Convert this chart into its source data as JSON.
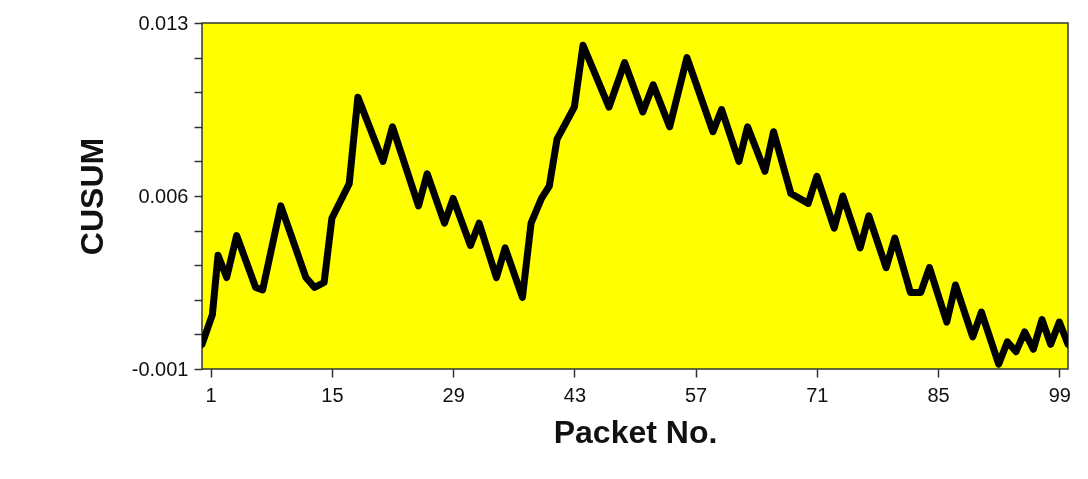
{
  "chart_data": {
    "type": "line",
    "xlabel": "Packet No.",
    "ylabel": "CUSUM",
    "color": "#000000",
    "x": [
      0,
      1.2,
      1.85,
      2.85,
      4,
      6.2,
      7,
      9.1,
      12,
      13,
      14.1,
      15,
      17,
      18,
      20.9,
      22,
      25,
      26,
      28,
      29,
      31,
      32,
      34,
      35,
      37,
      38,
      39.2,
      40.1,
      41,
      43,
      44,
      47,
      48.8,
      50.9,
      52.1,
      54,
      56,
      59,
      60,
      62,
      63,
      65,
      66,
      68,
      70,
      71,
      73,
      74,
      76,
      77,
      79,
      80,
      81.8,
      83,
      84,
      86,
      87,
      89,
      90,
      92,
      93,
      94,
      95,
      96,
      97,
      98,
      99,
      100
    ],
    "values": [
      0.0,
      0.0012,
      0.0036,
      0.0027,
      0.0044,
      0.0023,
      0.0022,
      0.0056,
      0.0027,
      0.0023,
      0.0025,
      0.0051,
      0.0065,
      0.01,
      0.0074,
      0.0088,
      0.0056,
      0.0069,
      0.0049,
      0.0059,
      0.004,
      0.0049,
      0.0027,
      0.0039,
      0.0019,
      0.0049,
      0.0059,
      0.0064,
      0.0083,
      0.0096,
      0.0121,
      0.0096,
      0.0114,
      0.0094,
      0.0105,
      0.0088,
      0.0116,
      0.0086,
      0.0095,
      0.0074,
      0.0088,
      0.007,
      0.0086,
      0.0061,
      0.0057,
      0.0068,
      0.0047,
      0.006,
      0.0039,
      0.0052,
      0.0031,
      0.0043,
      0.0021,
      0.0021,
      0.0031,
      0.0009,
      0.0024,
      0.0003,
      0.0013,
      -0.0008,
      0.0001,
      -0.0003,
      0.0005,
      -0.0002,
      0.001,
      0.0,
      0.0009,
      0.0
    ],
    "xlim": [
      0,
      100
    ],
    "xticks": [
      1,
      15,
      29,
      43,
      57,
      71,
      85,
      99
    ],
    "ylim": [
      -0.001,
      0.013
    ],
    "yticks": [
      -0.001,
      {
        "value": 0.0004,
        "label": null
      },
      {
        "value": 0.0018,
        "label": null
      },
      {
        "value": 0.0032,
        "label": null
      },
      {
        "value": 0.0046,
        "label": null
      },
      0.006,
      {
        "value": 0.0074,
        "label": null
      },
      {
        "value": 0.0088,
        "label": null
      },
      {
        "value": 0.0102,
        "label": null
      },
      {
        "value": 0.0116,
        "label": null
      },
      0.013
    ]
  }
}
